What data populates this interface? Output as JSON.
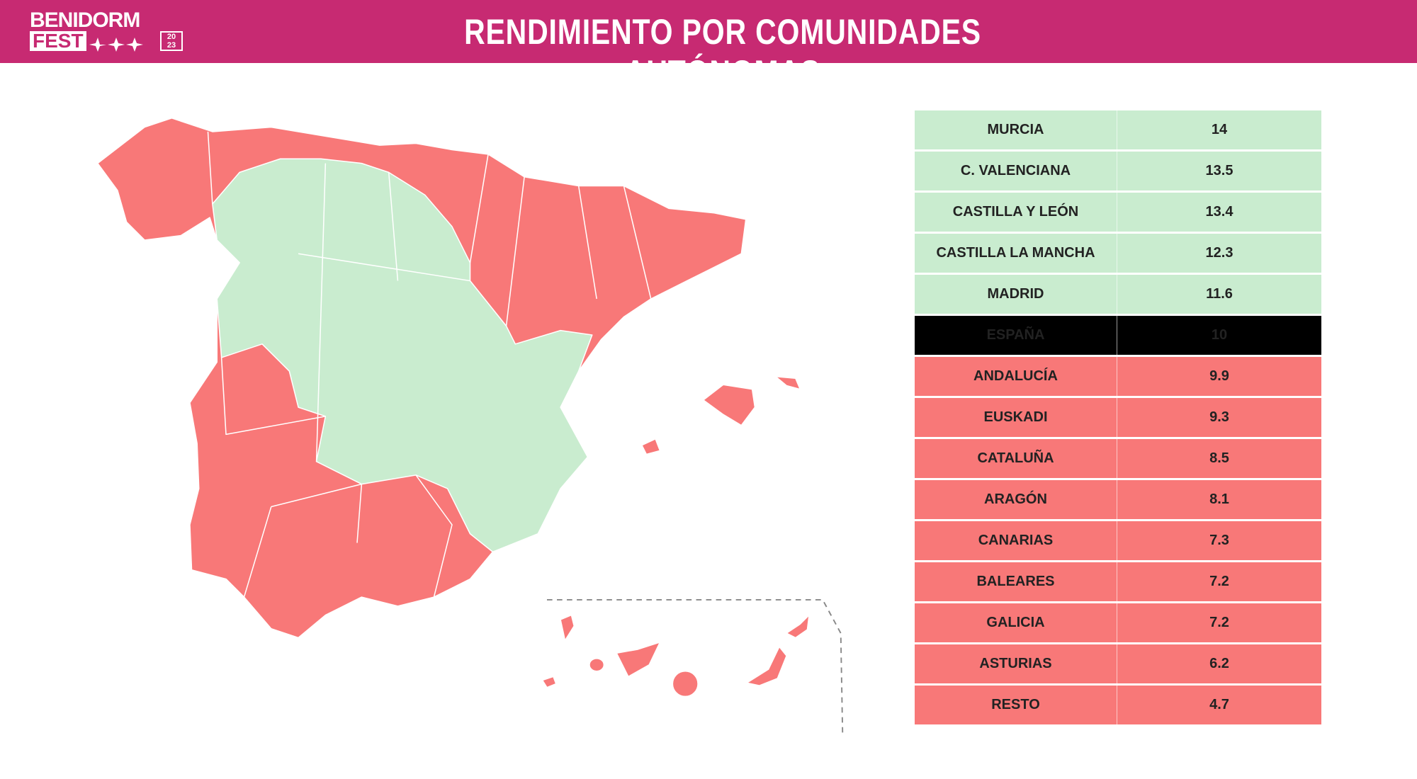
{
  "header": {
    "logo": {
      "line1": "BENIDORM",
      "line2": "FEST",
      "year": [
        "20",
        "23"
      ]
    },
    "title": "RENDIMIENTO POR COMUNIDADES AUTÓNOMAS"
  },
  "table": {
    "rows": [
      [
        "MURCIA",
        14
      ],
      [
        "C. VALENCIANA",
        13.5
      ],
      [
        "CASTILLA Y LEÓN",
        13.4
      ],
      [
        "CASTILLA LA MANCHA",
        12.3
      ],
      [
        "MADRID",
        11.6
      ],
      [
        "ESPAÑA",
        10
      ],
      [
        "ANDALUCÍA",
        9.9
      ],
      [
        "EUSKADI",
        9.3
      ],
      [
        "CATALUÑA",
        8.5
      ],
      [
        "ARAGÓN",
        8.1
      ],
      [
        "CANARIAS",
        7.3
      ],
      [
        "BALEARES",
        7.2
      ],
      [
        "GALICIA",
        7.2
      ],
      [
        "ASTURIAS",
        6.2
      ],
      [
        "RESTO",
        4.7
      ]
    ]
  }
}
